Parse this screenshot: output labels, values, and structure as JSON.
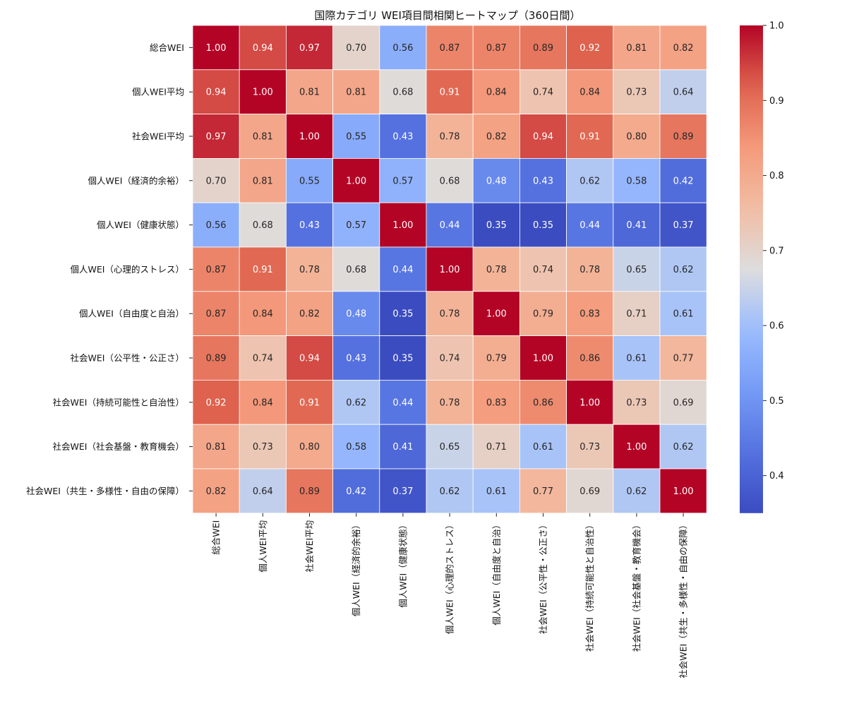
{
  "chart_data": {
    "type": "heatmap",
    "title": "国際カテゴリ WEI項目間相関ヒートマップ（360日間）",
    "labels": [
      "総合WEI",
      "個人WEI平均",
      "社会WEI平均",
      "個人WEI（経済的余裕）",
      "個人WEI（健康状態）",
      "個人WEI（心理的ストレス）",
      "個人WEI（自由度と自治）",
      "社会WEI（公平性・公正さ）",
      "社会WEI（持続可能性と自治性）",
      "社会WEI（社会基盤・教育機会）",
      "社会WEI（共生・多様性・自由の保障）"
    ],
    "matrix": [
      [
        1.0,
        0.94,
        0.97,
        0.7,
        0.56,
        0.87,
        0.87,
        0.89,
        0.92,
        0.81,
        0.82
      ],
      [
        0.94,
        1.0,
        0.81,
        0.81,
        0.68,
        0.91,
        0.84,
        0.74,
        0.84,
        0.73,
        0.64
      ],
      [
        0.97,
        0.81,
        1.0,
        0.55,
        0.43,
        0.78,
        0.82,
        0.94,
        0.91,
        0.8,
        0.89
      ],
      [
        0.7,
        0.81,
        0.55,
        1.0,
        0.57,
        0.68,
        0.48,
        0.43,
        0.62,
        0.58,
        0.42
      ],
      [
        0.56,
        0.68,
        0.43,
        0.57,
        1.0,
        0.44,
        0.35,
        0.35,
        0.44,
        0.41,
        0.37
      ],
      [
        0.87,
        0.91,
        0.78,
        0.68,
        0.44,
        1.0,
        0.78,
        0.74,
        0.78,
        0.65,
        0.62
      ],
      [
        0.87,
        0.84,
        0.82,
        0.48,
        0.35,
        0.78,
        1.0,
        0.79,
        0.83,
        0.71,
        0.61
      ],
      [
        0.89,
        0.74,
        0.94,
        0.43,
        0.35,
        0.74,
        0.79,
        1.0,
        0.86,
        0.61,
        0.77
      ],
      [
        0.92,
        0.84,
        0.91,
        0.62,
        0.44,
        0.78,
        0.83,
        0.86,
        1.0,
        0.73,
        0.69
      ],
      [
        0.81,
        0.73,
        0.8,
        0.58,
        0.41,
        0.65,
        0.71,
        0.61,
        0.73,
        1.0,
        0.62
      ],
      [
        0.82,
        0.64,
        0.89,
        0.42,
        0.37,
        0.62,
        0.61,
        0.77,
        0.69,
        0.62,
        1.0
      ]
    ],
    "colormap": "coolwarm",
    "colorbar": {
      "vmin": 0.35,
      "vmax": 1.0,
      "ticks": [
        "0.4",
        "0.5",
        "0.6",
        "0.7",
        "0.8",
        "0.9",
        "1.0"
      ]
    },
    "value_format": "2 decimals"
  }
}
